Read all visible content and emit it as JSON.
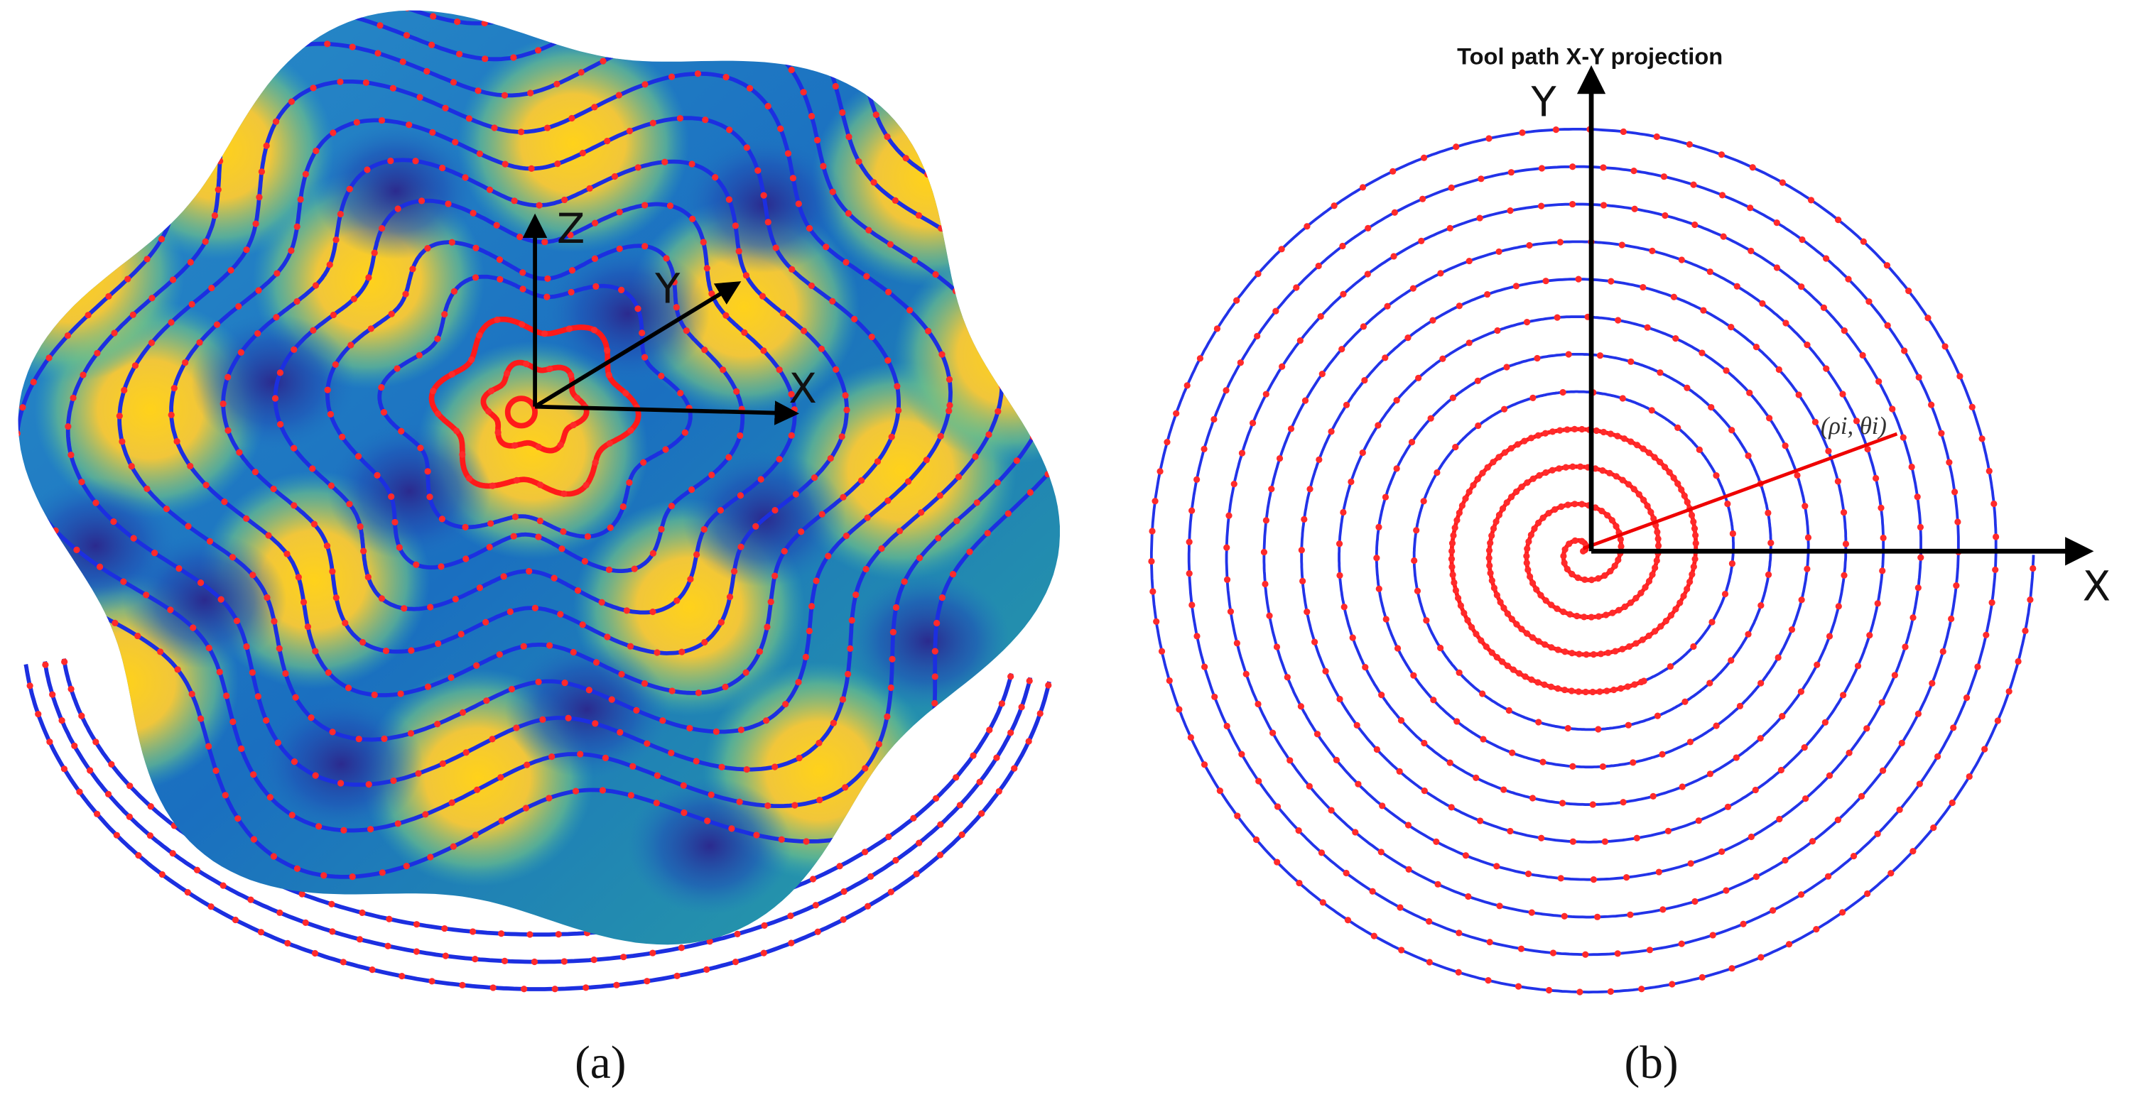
{
  "panel_a": {
    "axis_labels": {
      "z": "Z",
      "y": "Y",
      "x": "X"
    },
    "caption": "(a)"
  },
  "panel_b": {
    "title": "Tool path X-Y projection",
    "axis_labels": {
      "y": "Y",
      "x": "X"
    },
    "point_label": "(ρi, θi)",
    "caption": "(b)"
  }
}
